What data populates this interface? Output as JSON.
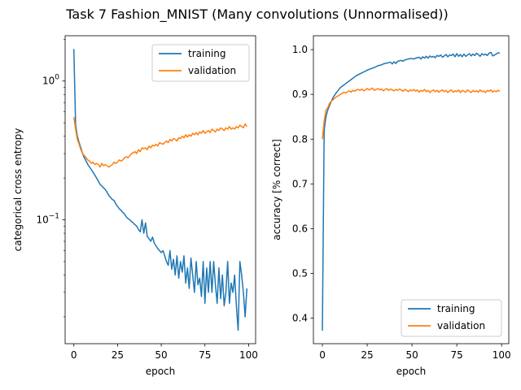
{
  "title": "Task 7 Fashion_MNIST (Many convolutions (Unnormalised))",
  "colors": {
    "training": "#1f77b4",
    "validation": "#ff7f0e"
  },
  "chart_data": [
    {
      "type": "line",
      "xlabel": "epoch",
      "ylabel": "categorical cross entropy",
      "yscale": "log",
      "xlim": [
        -5,
        104
      ],
      "ylim": [
        0.0128,
        2.12
      ],
      "xticks": [
        0,
        25,
        50,
        75,
        100
      ],
      "yticks": [
        {
          "value": 1.0,
          "label": "10^0"
        },
        {
          "value": 0.1,
          "label": "10^−1"
        }
      ],
      "legend_position": "top-right",
      "series": [
        {
          "name": "training",
          "color": "#1f77b4",
          "x": [
            0,
            1,
            2,
            3,
            4,
            5,
            6,
            7,
            8,
            9,
            10,
            11,
            12,
            13,
            14,
            15,
            16,
            17,
            18,
            19,
            20,
            21,
            22,
            23,
            24,
            25,
            26,
            27,
            28,
            29,
            30,
            31,
            32,
            33,
            34,
            35,
            36,
            37,
            38,
            39,
            40,
            41,
            42,
            43,
            44,
            45,
            46,
            47,
            48,
            49,
            50,
            51,
            52,
            53,
            54,
            55,
            56,
            57,
            58,
            59,
            60,
            61,
            62,
            63,
            64,
            65,
            66,
            67,
            68,
            69,
            70,
            71,
            72,
            73,
            74,
            75,
            76,
            77,
            78,
            79,
            80,
            81,
            82,
            83,
            84,
            85,
            86,
            87,
            88,
            89,
            90,
            91,
            92,
            93,
            94,
            95,
            96,
            97,
            98,
            99
          ],
          "y": [
            1.7,
            0.48,
            0.4,
            0.36,
            0.33,
            0.3,
            0.28,
            0.265,
            0.25,
            0.24,
            0.23,
            0.22,
            0.21,
            0.2,
            0.19,
            0.18,
            0.175,
            0.17,
            0.165,
            0.158,
            0.15,
            0.145,
            0.14,
            0.138,
            0.13,
            0.125,
            0.12,
            0.117,
            0.113,
            0.11,
            0.105,
            0.102,
            0.1,
            0.097,
            0.095,
            0.092,
            0.09,
            0.085,
            0.082,
            0.1,
            0.08,
            0.095,
            0.076,
            0.073,
            0.07,
            0.075,
            0.068,
            0.065,
            0.062,
            0.06,
            0.058,
            0.06,
            0.055,
            0.05,
            0.047,
            0.06,
            0.044,
            0.052,
            0.04,
            0.055,
            0.038,
            0.05,
            0.042,
            0.055,
            0.035,
            0.045,
            0.032,
            0.053,
            0.04,
            0.03,
            0.05,
            0.034,
            0.038,
            0.028,
            0.05,
            0.025,
            0.045,
            0.03,
            0.05,
            0.03,
            0.05,
            0.034,
            0.025,
            0.045,
            0.027,
            0.04,
            0.024,
            0.03,
            0.05,
            0.025,
            0.035,
            0.03,
            0.04,
            0.024,
            0.016,
            0.05,
            0.04,
            0.03,
            0.02,
            0.032
          ]
        },
        {
          "name": "validation",
          "color": "#ff7f0e",
          "x": [
            0,
            1,
            2,
            3,
            4,
            5,
            6,
            7,
            8,
            9,
            10,
            11,
            12,
            13,
            14,
            15,
            16,
            17,
            18,
            19,
            20,
            21,
            22,
            23,
            24,
            25,
            26,
            27,
            28,
            29,
            30,
            31,
            32,
            33,
            34,
            35,
            36,
            37,
            38,
            39,
            40,
            41,
            42,
            43,
            44,
            45,
            46,
            47,
            48,
            49,
            50,
            51,
            52,
            53,
            54,
            55,
            56,
            57,
            58,
            59,
            60,
            61,
            62,
            63,
            64,
            65,
            66,
            67,
            68,
            69,
            70,
            71,
            72,
            73,
            74,
            75,
            76,
            77,
            78,
            79,
            80,
            81,
            82,
            83,
            84,
            85,
            86,
            87,
            88,
            89,
            90,
            91,
            92,
            93,
            94,
            95,
            96,
            97,
            98,
            99
          ],
          "y": [
            0.55,
            0.45,
            0.38,
            0.35,
            0.32,
            0.3,
            0.29,
            0.28,
            0.27,
            0.265,
            0.255,
            0.26,
            0.25,
            0.255,
            0.25,
            0.24,
            0.255,
            0.245,
            0.25,
            0.245,
            0.24,
            0.245,
            0.25,
            0.26,
            0.255,
            0.26,
            0.27,
            0.265,
            0.27,
            0.28,
            0.285,
            0.28,
            0.29,
            0.3,
            0.305,
            0.31,
            0.3,
            0.32,
            0.31,
            0.33,
            0.325,
            0.33,
            0.32,
            0.34,
            0.33,
            0.345,
            0.34,
            0.35,
            0.34,
            0.36,
            0.355,
            0.35,
            0.36,
            0.37,
            0.36,
            0.38,
            0.37,
            0.385,
            0.38,
            0.37,
            0.39,
            0.385,
            0.4,
            0.39,
            0.41,
            0.395,
            0.41,
            0.4,
            0.42,
            0.41,
            0.425,
            0.41,
            0.43,
            0.42,
            0.44,
            0.42,
            0.43,
            0.44,
            0.425,
            0.45,
            0.44,
            0.43,
            0.45,
            0.44,
            0.46,
            0.45,
            0.44,
            0.46,
            0.45,
            0.47,
            0.45,
            0.46,
            0.45,
            0.47,
            0.46,
            0.48,
            0.47,
            0.46,
            0.49,
            0.47
          ]
        }
      ]
    },
    {
      "type": "line",
      "xlabel": "epoch",
      "ylabel": "accuracy [% correct]",
      "yscale": "linear",
      "xlim": [
        -5,
        104
      ],
      "ylim": [
        0.343,
        1.031
      ],
      "xticks": [
        0,
        25,
        50,
        75,
        100
      ],
      "yticks": [
        {
          "value": 0.4,
          "label": "0.4"
        },
        {
          "value": 0.5,
          "label": "0.5"
        },
        {
          "value": 0.6,
          "label": "0.6"
        },
        {
          "value": 0.7,
          "label": "0.7"
        },
        {
          "value": 0.8,
          "label": "0.8"
        },
        {
          "value": 0.9,
          "label": "0.9"
        },
        {
          "value": 1.0,
          "label": "1.0"
        }
      ],
      "legend_position": "lower-right",
      "series": [
        {
          "name": "training",
          "color": "#1f77b4",
          "x": [
            0,
            1,
            2,
            3,
            4,
            5,
            6,
            7,
            8,
            9,
            10,
            11,
            12,
            13,
            14,
            15,
            16,
            17,
            18,
            19,
            20,
            21,
            22,
            23,
            24,
            25,
            26,
            27,
            28,
            29,
            30,
            31,
            32,
            33,
            34,
            35,
            36,
            37,
            38,
            39,
            40,
            41,
            42,
            43,
            44,
            45,
            46,
            47,
            48,
            49,
            50,
            51,
            52,
            53,
            54,
            55,
            56,
            57,
            58,
            59,
            60,
            61,
            62,
            63,
            64,
            65,
            66,
            67,
            68,
            69,
            70,
            71,
            72,
            73,
            74,
            75,
            76,
            77,
            78,
            79,
            80,
            81,
            82,
            83,
            84,
            85,
            86,
            87,
            88,
            89,
            90,
            91,
            92,
            93,
            94,
            95,
            96,
            97,
            98,
            99
          ],
          "y": [
            0.372,
            0.82,
            0.85,
            0.865,
            0.875,
            0.885,
            0.893,
            0.899,
            0.905,
            0.91,
            0.915,
            0.918,
            0.921,
            0.924,
            0.927,
            0.93,
            0.933,
            0.936,
            0.939,
            0.942,
            0.944,
            0.946,
            0.948,
            0.95,
            0.952,
            0.954,
            0.956,
            0.957,
            0.959,
            0.96,
            0.962,
            0.964,
            0.965,
            0.966,
            0.968,
            0.969,
            0.97,
            0.971,
            0.972,
            0.968,
            0.973,
            0.969,
            0.974,
            0.975,
            0.976,
            0.974,
            0.977,
            0.978,
            0.979,
            0.98,
            0.98,
            0.979,
            0.981,
            0.982,
            0.983,
            0.979,
            0.984,
            0.981,
            0.985,
            0.981,
            0.986,
            0.983,
            0.985,
            0.982,
            0.987,
            0.985,
            0.988,
            0.983,
            0.986,
            0.989,
            0.984,
            0.988,
            0.987,
            0.99,
            0.984,
            0.991,
            0.985,
            0.989,
            0.984,
            0.99,
            0.985,
            0.988,
            0.991,
            0.986,
            0.99,
            0.987,
            0.992,
            0.989,
            0.985,
            0.991,
            0.988,
            0.99,
            0.987,
            0.992,
            0.994,
            0.986,
            0.988,
            0.99,
            0.993,
            0.992
          ]
        },
        {
          "name": "validation",
          "color": "#ff7f0e",
          "x": [
            0,
            1,
            2,
            3,
            4,
            5,
            6,
            7,
            8,
            9,
            10,
            11,
            12,
            13,
            14,
            15,
            16,
            17,
            18,
            19,
            20,
            21,
            22,
            23,
            24,
            25,
            26,
            27,
            28,
            29,
            30,
            31,
            32,
            33,
            34,
            35,
            36,
            37,
            38,
            39,
            40,
            41,
            42,
            43,
            44,
            45,
            46,
            47,
            48,
            49,
            50,
            51,
            52,
            53,
            54,
            55,
            56,
            57,
            58,
            59,
            60,
            61,
            62,
            63,
            64,
            65,
            66,
            67,
            68,
            69,
            70,
            71,
            72,
            73,
            74,
            75,
            76,
            77,
            78,
            79,
            80,
            81,
            82,
            83,
            84,
            85,
            86,
            87,
            88,
            89,
            90,
            91,
            92,
            93,
            94,
            95,
            96,
            97,
            98,
            99
          ],
          "y": [
            0.8,
            0.84,
            0.865,
            0.87,
            0.88,
            0.885,
            0.888,
            0.892,
            0.895,
            0.897,
            0.9,
            0.902,
            0.905,
            0.903,
            0.906,
            0.908,
            0.905,
            0.909,
            0.907,
            0.91,
            0.911,
            0.909,
            0.912,
            0.908,
            0.91,
            0.913,
            0.91,
            0.912,
            0.914,
            0.909,
            0.911,
            0.913,
            0.91,
            0.912,
            0.908,
            0.911,
            0.913,
            0.909,
            0.912,
            0.91,
            0.908,
            0.911,
            0.909,
            0.912,
            0.91,
            0.907,
            0.911,
            0.909,
            0.906,
            0.91,
            0.908,
            0.911,
            0.907,
            0.91,
            0.905,
            0.909,
            0.907,
            0.911,
            0.906,
            0.909,
            0.904,
            0.908,
            0.91,
            0.906,
            0.909,
            0.905,
            0.908,
            0.91,
            0.906,
            0.909,
            0.904,
            0.908,
            0.91,
            0.905,
            0.908,
            0.906,
            0.91,
            0.904,
            0.909,
            0.907,
            0.905,
            0.91,
            0.907,
            0.904,
            0.909,
            0.906,
            0.908,
            0.905,
            0.91,
            0.906,
            0.908,
            0.904,
            0.909,
            0.907,
            0.91,
            0.905,
            0.908,
            0.906,
            0.909,
            0.907
          ]
        }
      ]
    }
  ]
}
